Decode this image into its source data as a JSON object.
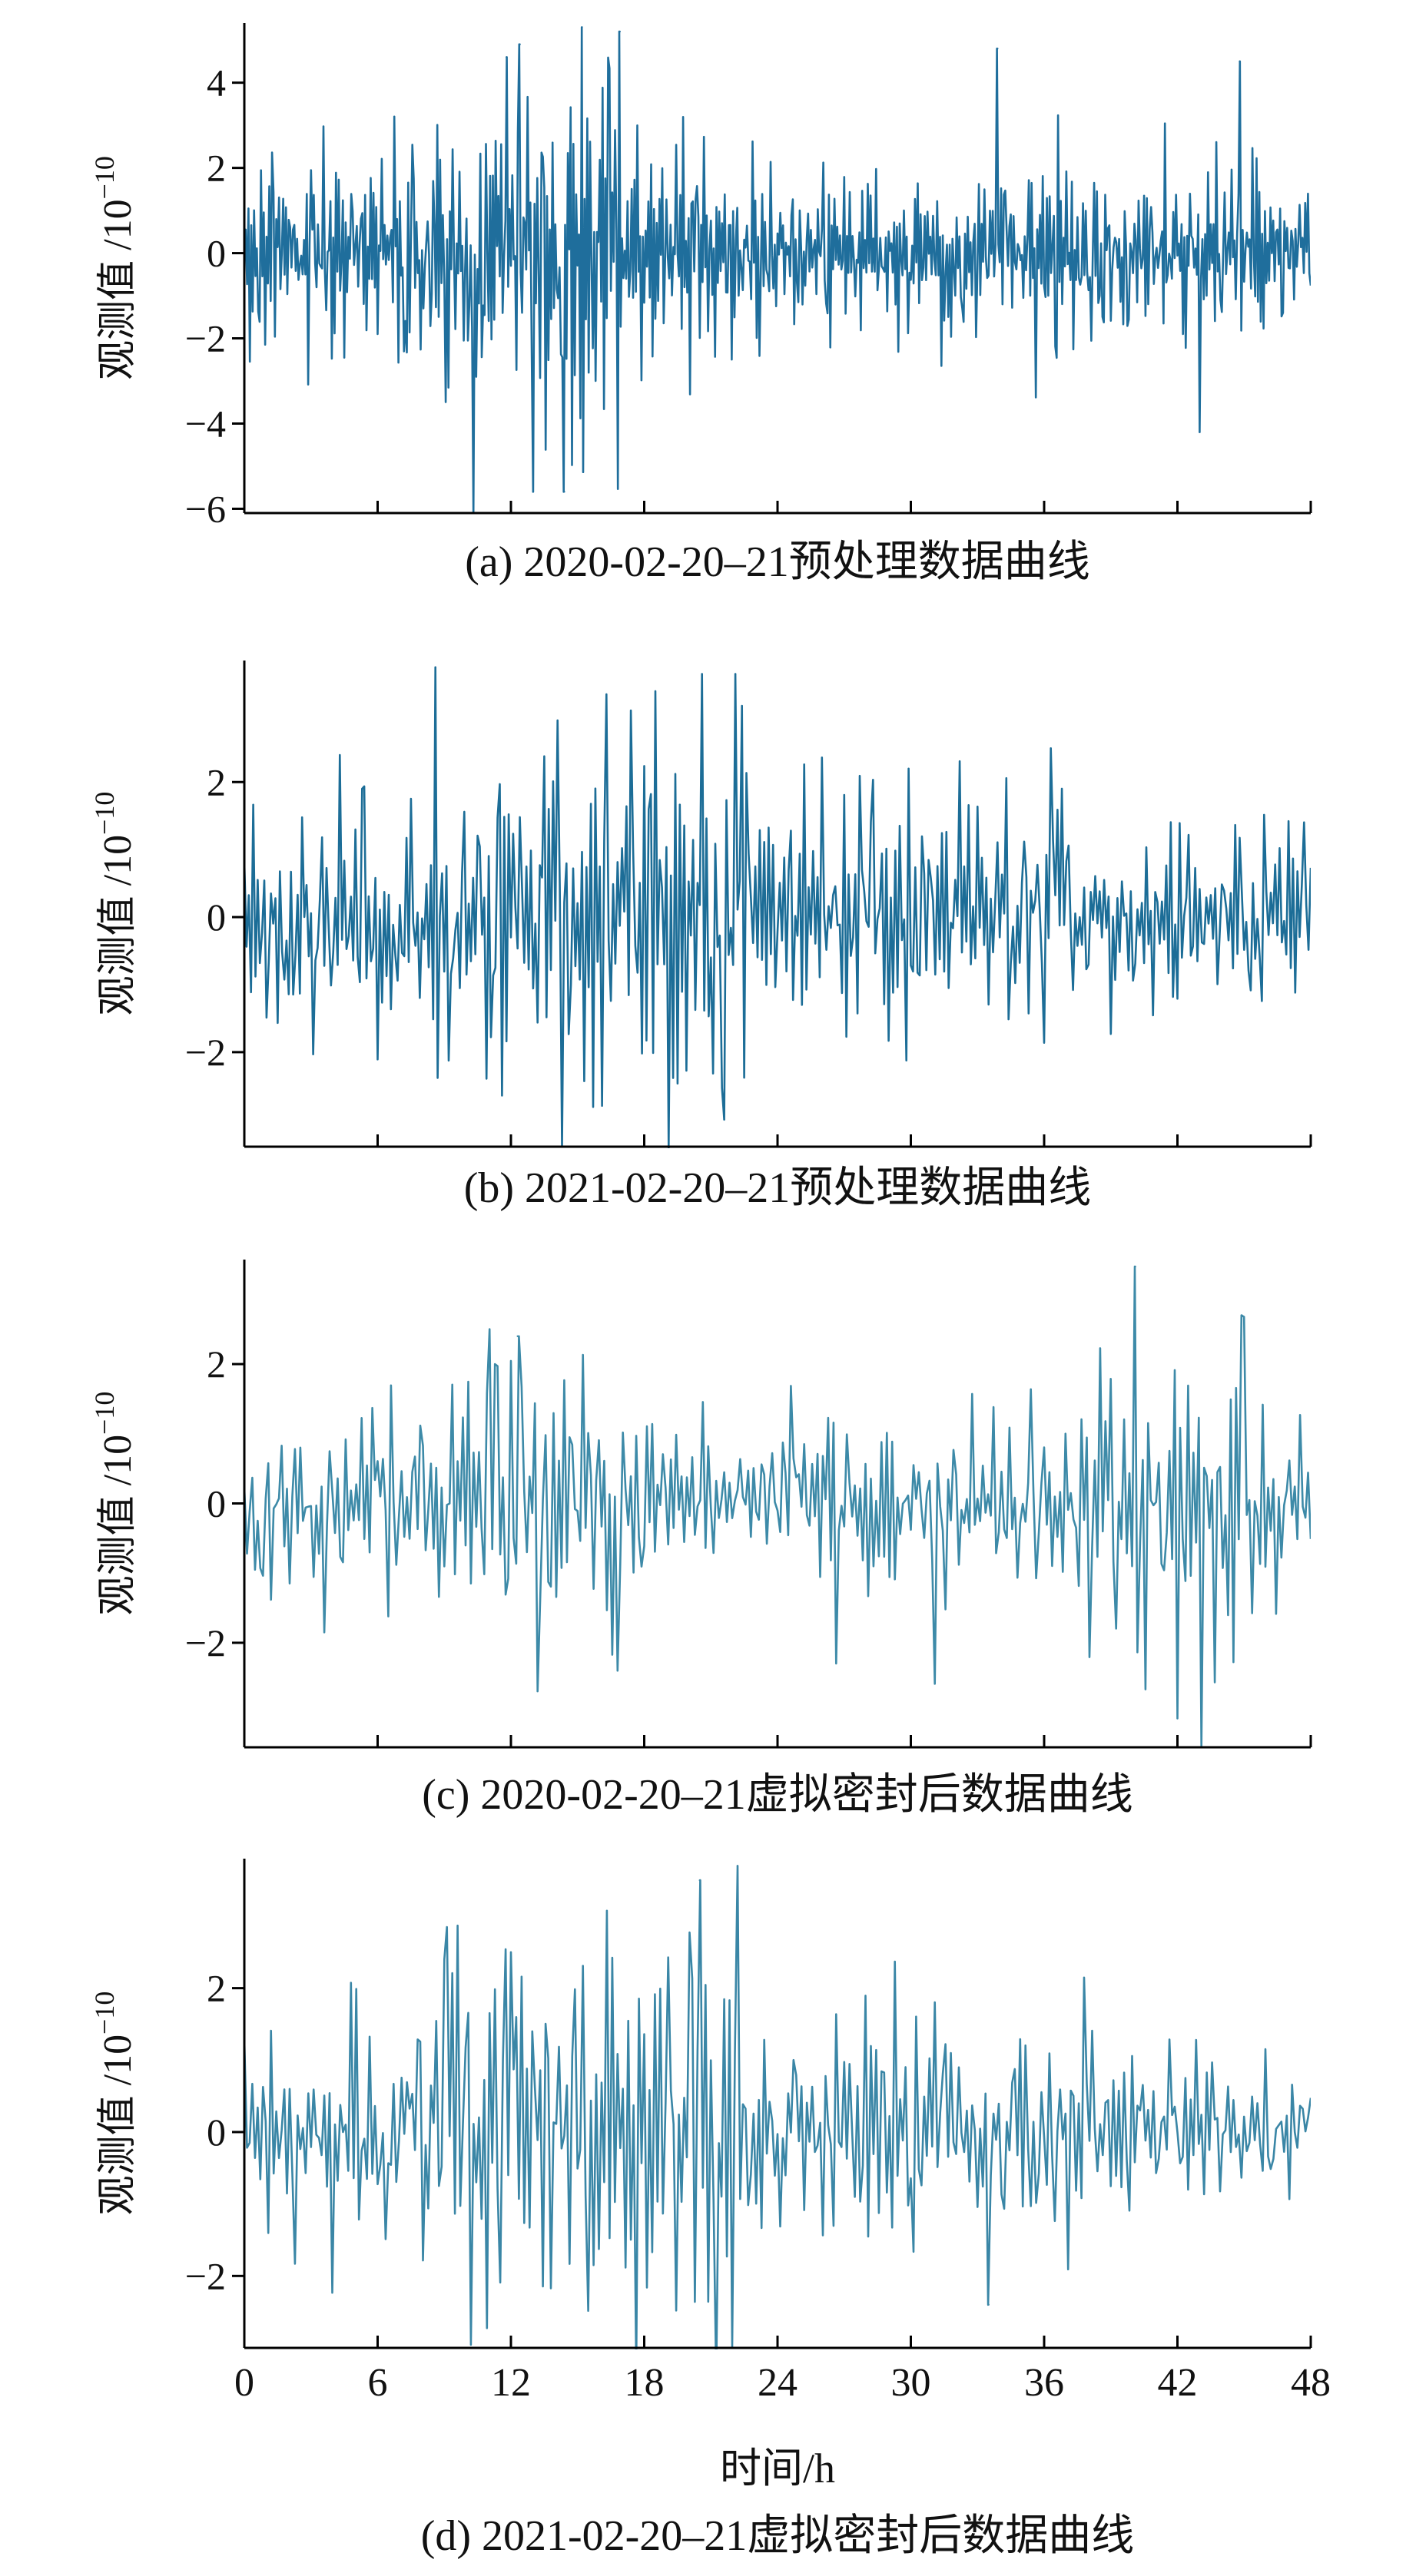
{
  "chart_data": [
    {
      "type": "line",
      "caption": "(a) 2020-02-20–21预处理数据曲线",
      "ylabel_text": "观测值 /10",
      "ylabel_exp": "−10",
      "xlim": [
        0,
        48
      ],
      "ylim": [
        -6.1,
        5.4
      ],
      "yticks": [
        -6,
        -4,
        -2,
        0,
        2,
        4
      ],
      "xticks": [
        0,
        6,
        12,
        18,
        24,
        30,
        36,
        42,
        48
      ],
      "show_xtick_labels": false,
      "color": "#1f6e9c",
      "x_step_hours": 0.0625,
      "amplitude_profile": [
        [
          0,
          1.6
        ],
        [
          5,
          1.5
        ],
        [
          9,
          2.0
        ],
        [
          12,
          2.6
        ],
        [
          15,
          2.8
        ],
        [
          18,
          1.8
        ],
        [
          24,
          1.2
        ],
        [
          30,
          1.3
        ],
        [
          36,
          1.4
        ],
        [
          42,
          1.3
        ],
        [
          48,
          1.2
        ]
      ],
      "highlights": [
        {
          "x": 10.3,
          "y": -6.1
        },
        {
          "x": 11.8,
          "y": 4.6
        },
        {
          "x": 12.4,
          "y": 4.9
        },
        {
          "x": 13.0,
          "y": -5.6
        },
        {
          "x": 14.4,
          "y": -5.6
        },
        {
          "x": 15.2,
          "y": 5.3
        },
        {
          "x": 16.9,
          "y": 5.2
        },
        {
          "x": 33.9,
          "y": 4.8
        },
        {
          "x": 43.0,
          "y": -4.2
        },
        {
          "x": 44.8,
          "y": 4.5
        }
      ]
    },
    {
      "type": "line",
      "caption": "(b) 2021-02-20–21预处理数据曲线",
      "ylabel_text": "观测值 /10",
      "ylabel_exp": "−10",
      "xlim": [
        0,
        48
      ],
      "ylim": [
        -3.4,
        3.8
      ],
      "yticks": [
        -2,
        0,
        2
      ],
      "xticks": [
        0,
        6,
        12,
        18,
        24,
        30,
        36,
        42,
        48
      ],
      "show_xtick_labels": false,
      "color": "#1c6d97",
      "x_step_hours": 0.1,
      "amplitude_profile": [
        [
          0,
          1.2
        ],
        [
          6,
          1.4
        ],
        [
          9,
          1.7
        ],
        [
          12,
          1.8
        ],
        [
          16,
          1.9
        ],
        [
          20,
          1.9
        ],
        [
          24,
          1.3
        ],
        [
          30,
          1.4
        ],
        [
          36,
          1.2
        ],
        [
          42,
          0.9
        ],
        [
          48,
          0.9
        ]
      ],
      "highlights": [
        {
          "x": 8.6,
          "y": 3.7
        },
        {
          "x": 14.3,
          "y": -3.4
        },
        {
          "x": 16.3,
          "y": 3.3
        },
        {
          "x": 20.6,
          "y": 3.6
        },
        {
          "x": 21.6,
          "y": -3.0
        },
        {
          "x": 22.1,
          "y": 3.6
        },
        {
          "x": 36.3,
          "y": 2.5
        }
      ]
    },
    {
      "type": "line",
      "caption": "(c) 2020-02-20–21虚拟密封后数据曲线",
      "ylabel_text": "观测值 /10",
      "ylabel_exp": "−10",
      "xlim": [
        0,
        48
      ],
      "ylim": [
        -3.5,
        3.5
      ],
      "yticks": [
        -2,
        0,
        2
      ],
      "xticks": [
        0,
        6,
        12,
        18,
        24,
        30,
        36,
        42,
        48
      ],
      "show_xtick_labels": false,
      "color": "#3d8aa8",
      "x_step_hours": 0.12,
      "amplitude_profile": [
        [
          0,
          0.9
        ],
        [
          4,
          0.8
        ],
        [
          8,
          1.3
        ],
        [
          12,
          1.6
        ],
        [
          16,
          1.5
        ],
        [
          20,
          0.6
        ],
        [
          24,
          0.7
        ],
        [
          28,
          1.0
        ],
        [
          32,
          0.8
        ],
        [
          36,
          0.9
        ],
        [
          40,
          1.5
        ],
        [
          44,
          1.7
        ],
        [
          48,
          1.1
        ]
      ],
      "highlights": [
        {
          "x": 12.3,
          "y": 2.4
        },
        {
          "x": 16.8,
          "y": -2.4
        },
        {
          "x": 40.1,
          "y": 3.4
        },
        {
          "x": 43.1,
          "y": -3.5
        },
        {
          "x": 44.9,
          "y": 2.7
        }
      ]
    },
    {
      "type": "line",
      "caption": "(d) 2021-02-20–21虚拟密封后数据曲线",
      "ylabel_text": "观测值 /10",
      "ylabel_exp": "−10",
      "xlim": [
        0,
        48
      ],
      "ylim": [
        -3.0,
        3.8
      ],
      "yticks": [
        -2,
        0,
        2
      ],
      "xticks": [
        0,
        6,
        12,
        18,
        24,
        30,
        36,
        42,
        48
      ],
      "xtick_labels": [
        "0",
        "6",
        "12",
        "18",
        "24",
        "30",
        "36",
        "42",
        "48"
      ],
      "show_xtick_labels": true,
      "xlabel": "时间/h",
      "color": "#3a86a6",
      "x_step_hours": 0.12,
      "amplitude_profile": [
        [
          0,
          1.0
        ],
        [
          6,
          1.2
        ],
        [
          9,
          1.6
        ],
        [
          12,
          1.7
        ],
        [
          16,
          1.5
        ],
        [
          20,
          1.9
        ],
        [
          24,
          1.0
        ],
        [
          30,
          1.2
        ],
        [
          36,
          1.0
        ],
        [
          42,
          0.7
        ],
        [
          48,
          0.9
        ]
      ],
      "highlights": [
        {
          "x": 9.0,
          "y": 2.4
        },
        {
          "x": 12.0,
          "y": 2.5
        },
        {
          "x": 20.5,
          "y": 3.5
        },
        {
          "x": 22.0,
          "y": -3.0
        },
        {
          "x": 22.2,
          "y": 3.7
        },
        {
          "x": 33.5,
          "y": -2.4
        }
      ]
    }
  ]
}
